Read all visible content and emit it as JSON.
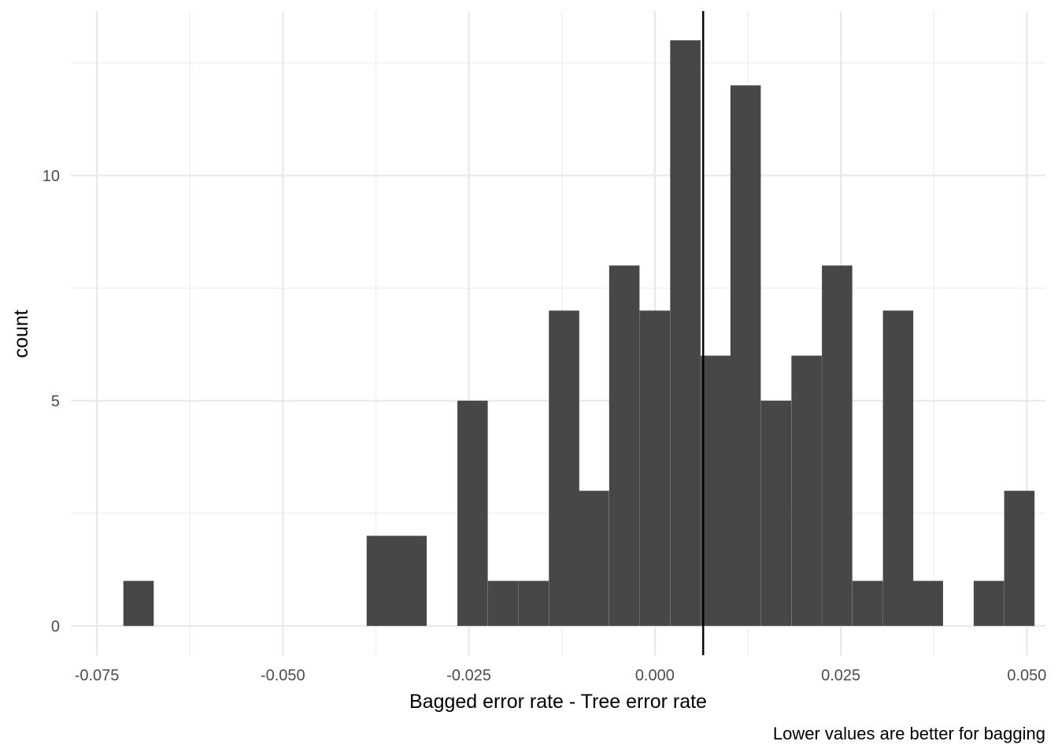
{
  "chart_data": {
    "type": "bar",
    "subtype": "histogram",
    "xlabel": "Bagged error rate - Tree error rate",
    "ylabel": "count",
    "caption": "Lower values are better for bagging",
    "xlim": [
      -0.0785,
      0.0525
    ],
    "ylim": [
      -0.65,
      13.65
    ],
    "x_ticks": [
      -0.075,
      -0.05,
      -0.025,
      0.0,
      0.025,
      0.05
    ],
    "x_tick_labels": [
      "-0.075",
      "-0.050",
      "-0.025",
      "0.000",
      "0.025",
      "0.050"
    ],
    "y_ticks": [
      0,
      5,
      10
    ],
    "y_tick_labels": [
      "0",
      "5",
      "10"
    ],
    "bin_width": 0.00408,
    "bins": [
      {
        "x": -0.0694,
        "count": 1
      },
      {
        "x": -0.0367,
        "count": 2
      },
      {
        "x": -0.0327,
        "count": 2
      },
      {
        "x": -0.0245,
        "count": 5
      },
      {
        "x": -0.0204,
        "count": 1
      },
      {
        "x": -0.0163,
        "count": 1
      },
      {
        "x": -0.0122,
        "count": 7
      },
      {
        "x": -0.0082,
        "count": 3
      },
      {
        "x": -0.0041,
        "count": 8
      },
      {
        "x": 0.0,
        "count": 7
      },
      {
        "x": 0.0041,
        "count": 13
      },
      {
        "x": 0.0082,
        "count": 6
      },
      {
        "x": 0.0122,
        "count": 12
      },
      {
        "x": 0.0163,
        "count": 5
      },
      {
        "x": 0.0204,
        "count": 6
      },
      {
        "x": 0.0245,
        "count": 8
      },
      {
        "x": 0.0286,
        "count": 1
      },
      {
        "x": 0.0327,
        "count": 7
      },
      {
        "x": 0.0367,
        "count": 1
      },
      {
        "x": 0.0449,
        "count": 1
      },
      {
        "x": 0.049,
        "count": 3
      }
    ],
    "vline": {
      "x": 0.0065,
      "color": "#000000"
    },
    "bar_color": "#474747",
    "grid": true,
    "legend": "none"
  }
}
